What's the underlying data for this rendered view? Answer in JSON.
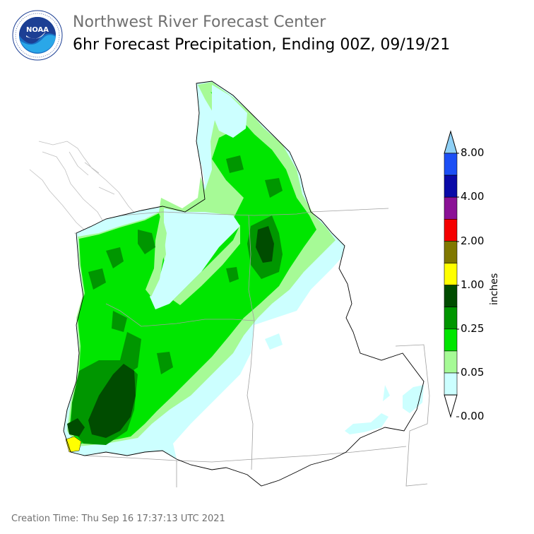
{
  "header": {
    "agency": "Northwest River Forecast Center",
    "product": "6hr Forecast Precipitation, Ending 00Z, 09/19/21",
    "logo_text": "NOAA"
  },
  "legend": {
    "unit_label": "inches",
    "tick_labels": [
      "8.00",
      "4.00",
      "2.00",
      "1.00",
      "0.25",
      "0.05",
      "0.00"
    ],
    "colors": [
      "#8fd0f5",
      "#1c4ff5",
      "#0a0aa8",
      "#8b1296",
      "#f50000",
      "#807800",
      "#ffff00",
      "#004c00",
      "#009600",
      "#00e600",
      "#a6fa96",
      "#ccffff",
      "#ffffff"
    ]
  },
  "map_colors": {
    "light_cyan": "#ccffff",
    "light_green": "#a6fa96",
    "bright_green": "#00e600",
    "medium_green": "#009600",
    "dark_green": "#004c00",
    "yellow": "#ffff00"
  },
  "footer": {
    "creation_time": "Creation Time: Thu Sep 16 17:37:13 UTC 2021"
  }
}
